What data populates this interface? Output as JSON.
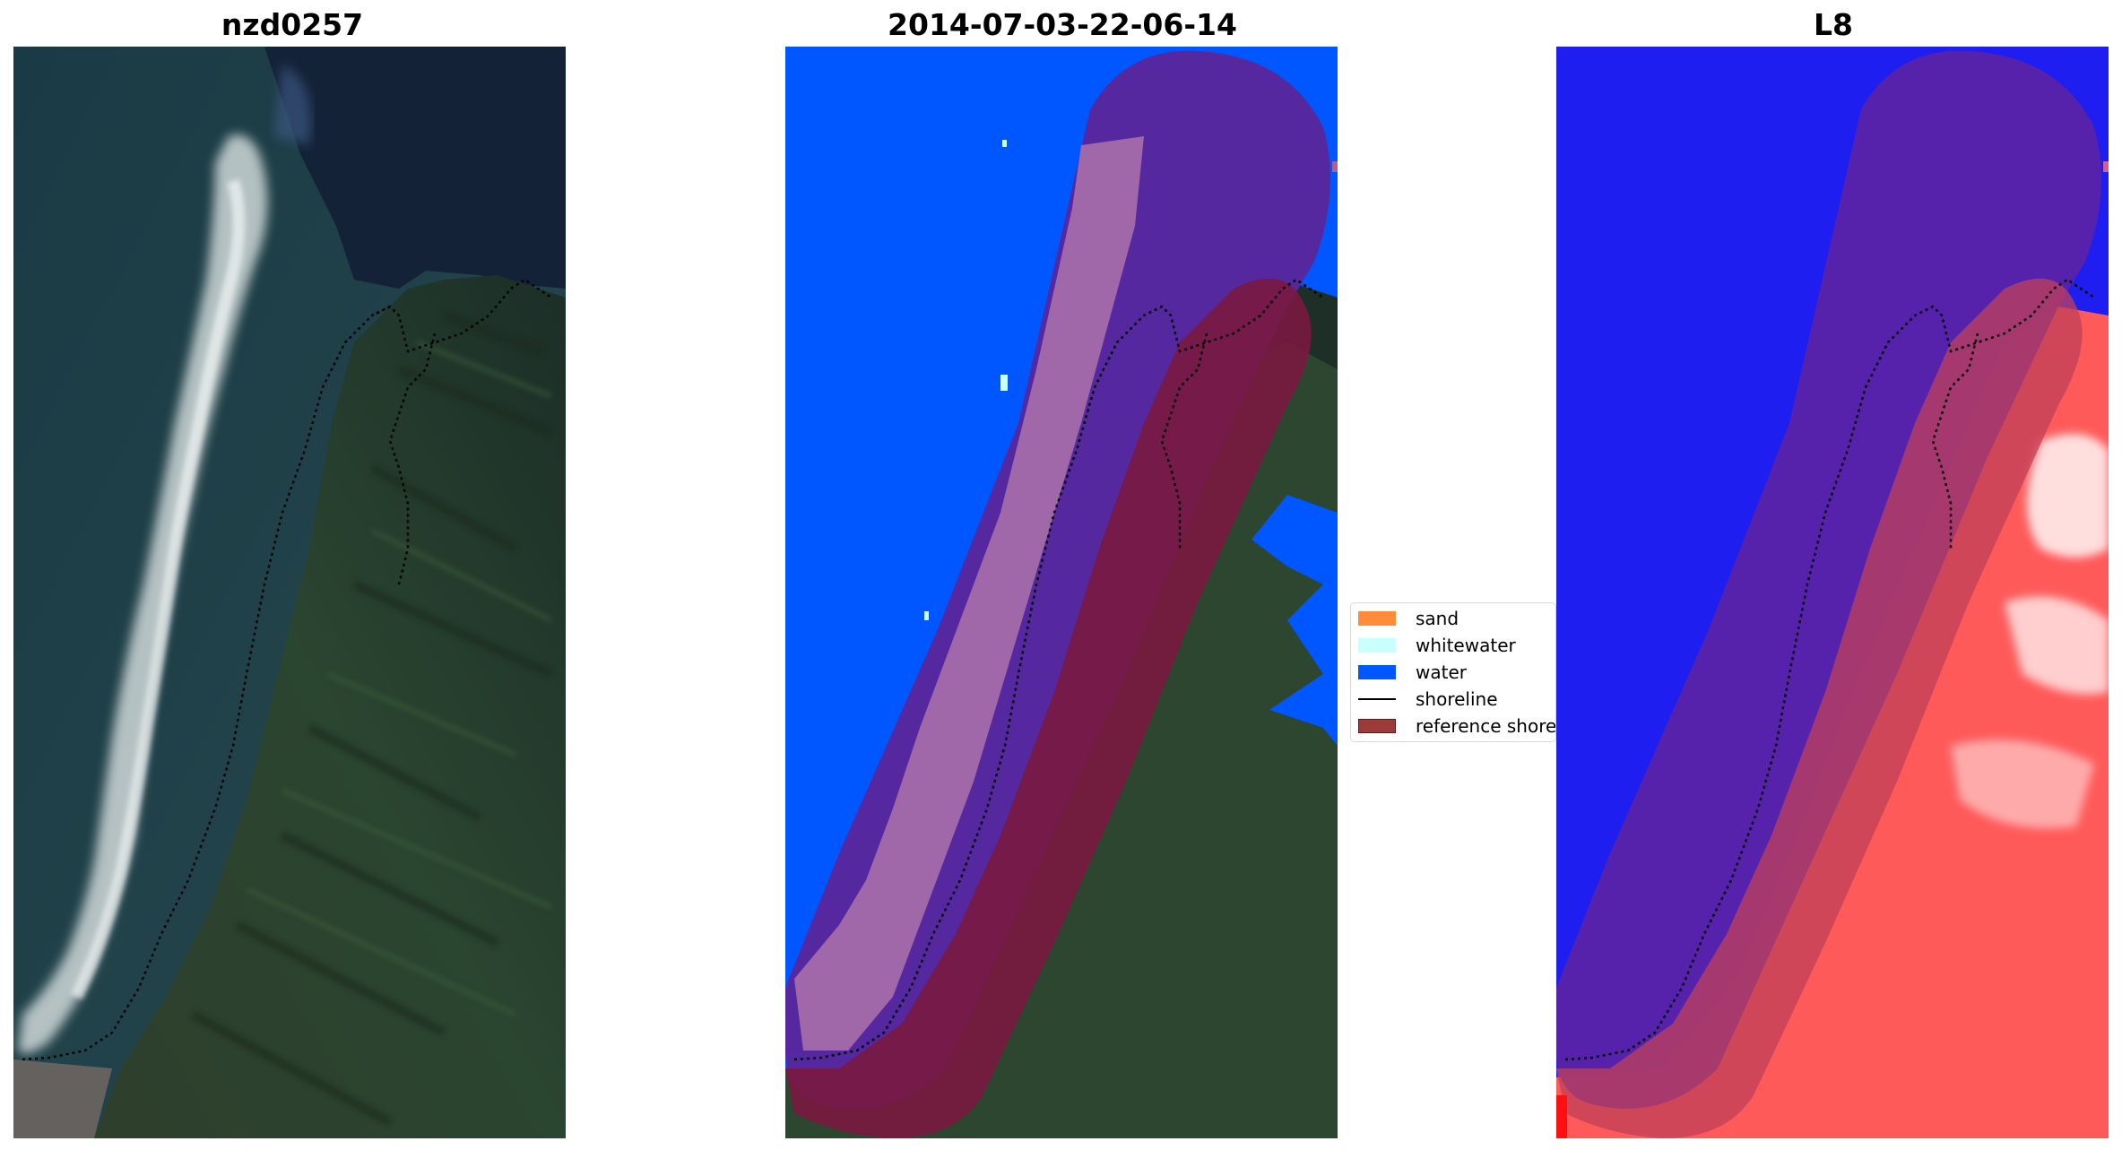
{
  "figure": {
    "panels": [
      {
        "title": "nzd0257",
        "kind": "rgb"
      },
      {
        "title": "2014-07-03-22-06-14",
        "kind": "classification"
      },
      {
        "title": "L8",
        "kind": "index"
      }
    ]
  },
  "legend": {
    "items": [
      {
        "label": "sand",
        "type": "patch",
        "color": "#ff8c3a"
      },
      {
        "label": "whitewater",
        "type": "patch",
        "color": "#c9ffff"
      },
      {
        "label": "water",
        "type": "patch",
        "color": "#0057ff"
      },
      {
        "label": "shoreline",
        "type": "line",
        "color": "#000000"
      },
      {
        "label": "reference shoreline buffer",
        "type": "patch",
        "color": "#9e3a3a"
      }
    ]
  },
  "colors": {
    "water_dark": "#15273d",
    "land_green": "#2c4630",
    "classified_water": "#0057ff",
    "buffer_purple": "#5a2aa0",
    "buffer_maroon": "#7a1840",
    "index_blue": "#1f2de8",
    "index_red": "#ff5a5a"
  }
}
